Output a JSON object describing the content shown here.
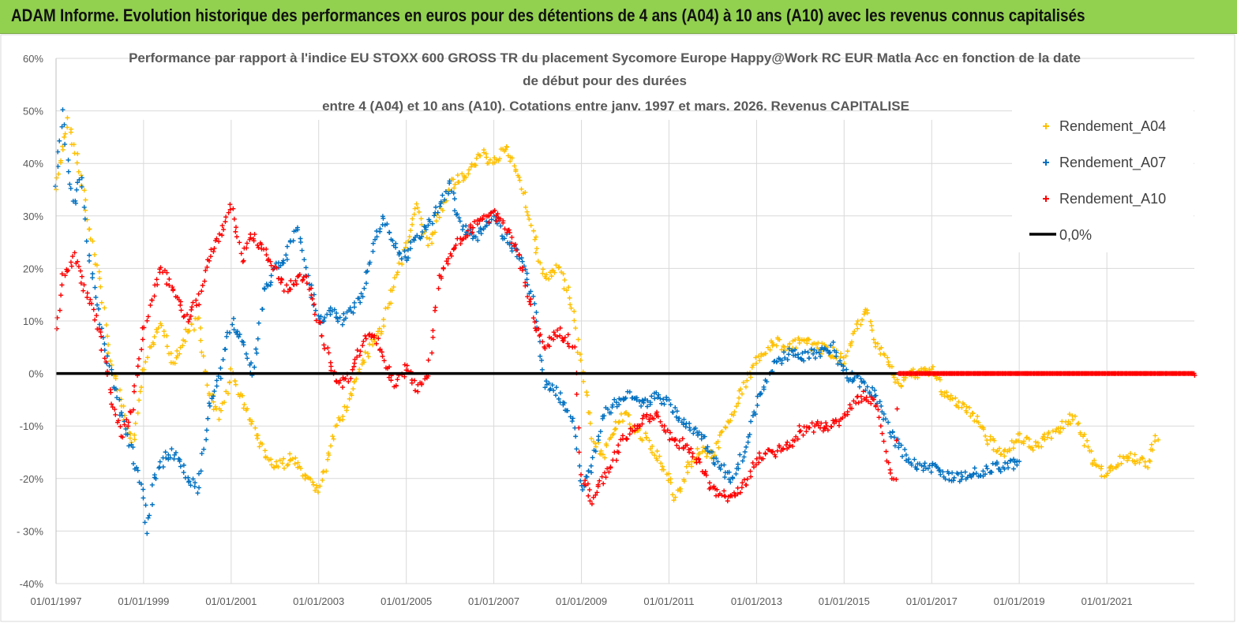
{
  "header": {
    "title": "ADAM Informe. Evolution historique des performances en euros pour des détentions de 4 ans (A04) à 10 ans (A10) avec les revenus connus capitalisés"
  },
  "colors": {
    "header_bg": "#92d050",
    "A04": "#ffc000",
    "A07": "#0070c0",
    "A10": "#ff0000",
    "zero_line": "#000000",
    "grid": "#d9d9d9"
  },
  "chart_data": {
    "type": "scatter",
    "title_lines": [
      "Performance par rapport à l'indice EU STOXX 600 GROSS TR  du placement Sycomore Europe Happy@Work RC EUR Matla Acc en fonction de la date",
      "de début pour des durées",
      "entre 4 (A04) et 10 ans (A10). Cotations entre janv. 1997 et mars. 2026. Revenus CAPITALISE"
    ],
    "x_type": "date",
    "xlim": [
      "1997-01-01",
      "2023-01-01"
    ],
    "ylim": [
      -0.4,
      0.6
    ],
    "y_format": "percent",
    "y_ticks": [
      "60%",
      "50%",
      "40%",
      "30%",
      "20%",
      "10%",
      "0%",
      "-10%",
      "-20%",
      "- 30%",
      "-40%"
    ],
    "x_ticks": [
      "01/01/1997",
      "01/01/1999",
      "01/01/2001",
      "01/01/2003",
      "01/01/2005",
      "01/01/2007",
      "01/01/2009",
      "01/01/2011",
      "01/01/2013",
      "01/01/2015",
      "01/01/2017",
      "01/01/2019",
      "01/01/2021"
    ],
    "grid": true,
    "legend_position": "right",
    "series": [
      {
        "name": "Rendement_A04",
        "marker": "plus",
        "points": [
          [
            "1997-01-01",
            0.35
          ],
          [
            "1997-03-15",
            0.45
          ],
          [
            "1997-04-15",
            0.48
          ],
          [
            "1997-07-01",
            0.4
          ],
          [
            "1997-10-01",
            0.28
          ],
          [
            "1998-01-01",
            0.18
          ],
          [
            "1998-04-01",
            0.02
          ],
          [
            "1998-07-01",
            -0.06
          ],
          [
            "1998-10-01",
            -0.14
          ],
          [
            "1998-11-15",
            -0.08
          ],
          [
            "1999-01-01",
            0.0
          ],
          [
            "1999-03-01",
            0.05
          ],
          [
            "1999-06-01",
            0.09
          ],
          [
            "1999-09-01",
            0.02
          ],
          [
            "2000-01-01",
            0.08
          ],
          [
            "2000-04-01",
            0.1
          ],
          [
            "2000-07-01",
            -0.04
          ],
          [
            "2000-10-01",
            -0.08
          ],
          [
            "2001-01-01",
            0.0
          ],
          [
            "2001-04-01",
            -0.05
          ],
          [
            "2001-07-01",
            -0.1
          ],
          [
            "2001-10-01",
            -0.15
          ],
          [
            "2002-01-01",
            -0.18
          ],
          [
            "2002-06-01",
            -0.16
          ],
          [
            "2002-09-01",
            -0.2
          ],
          [
            "2003-01-01",
            -0.22
          ],
          [
            "2003-03-01",
            -0.18
          ],
          [
            "2003-06-01",
            -0.1
          ],
          [
            "2003-10-01",
            -0.04
          ],
          [
            "2004-01-01",
            0.02
          ],
          [
            "2004-06-01",
            0.08
          ],
          [
            "2004-10-01",
            0.18
          ],
          [
            "2005-01-01",
            0.25
          ],
          [
            "2005-04-01",
            0.32
          ],
          [
            "2005-07-01",
            0.24
          ],
          [
            "2005-10-01",
            0.3
          ],
          [
            "2006-01-01",
            0.36
          ],
          [
            "2006-06-01",
            0.38
          ],
          [
            "2006-10-01",
            0.42
          ],
          [
            "2007-01-01",
            0.4
          ],
          [
            "2007-04-01",
            0.43
          ],
          [
            "2007-08-01",
            0.38
          ],
          [
            "2007-12-01",
            0.26
          ],
          [
            "2008-03-01",
            0.18
          ],
          [
            "2008-07-01",
            0.2
          ],
          [
            "2008-10-01",
            0.14
          ],
          [
            "2009-01-01",
            0.02
          ],
          [
            "2009-04-01",
            -0.12
          ],
          [
            "2009-07-01",
            -0.16
          ],
          [
            "2009-10-01",
            -0.1
          ],
          [
            "2010-01-01",
            -0.08
          ],
          [
            "2010-06-01",
            -0.12
          ],
          [
            "2010-10-01",
            -0.16
          ],
          [
            "2011-01-01",
            -0.2
          ],
          [
            "2011-03-01",
            -0.24
          ],
          [
            "2011-06-01",
            -0.18
          ],
          [
            "2011-10-01",
            -0.14
          ],
          [
            "2012-01-01",
            -0.16
          ],
          [
            "2012-06-01",
            -0.08
          ],
          [
            "2012-10-01",
            -0.02
          ],
          [
            "2013-01-01",
            0.03
          ],
          [
            "2013-06-01",
            0.06
          ],
          [
            "2013-10-01",
            0.05
          ],
          [
            "2014-01-01",
            0.06
          ],
          [
            "2014-06-01",
            0.05
          ],
          [
            "2014-10-01",
            0.04
          ],
          [
            "2015-01-01",
            0.02
          ],
          [
            "2015-04-01",
            0.08
          ],
          [
            "2015-07-01",
            0.12
          ],
          [
            "2015-10-01",
            0.06
          ],
          [
            "2016-01-01",
            0.02
          ],
          [
            "2016-04-01",
            -0.02
          ],
          [
            "2016-08-01",
            0.0
          ],
          [
            "2017-01-01",
            0.01
          ],
          [
            "2017-04-01",
            -0.03
          ],
          [
            "2017-08-01",
            -0.06
          ],
          [
            "2018-01-01",
            -0.08
          ],
          [
            "2018-05-01",
            -0.13
          ],
          [
            "2018-09-01",
            -0.15
          ],
          [
            "2019-01-01",
            -0.12
          ],
          [
            "2019-05-01",
            -0.14
          ],
          [
            "2019-09-01",
            -0.12
          ],
          [
            "2020-01-01",
            -0.1
          ],
          [
            "2020-04-01",
            -0.08
          ],
          [
            "2020-07-01",
            -0.13
          ],
          [
            "2020-10-01",
            -0.18
          ],
          [
            "2021-01-01",
            -0.19
          ],
          [
            "2021-04-01",
            -0.17
          ],
          [
            "2021-08-01",
            -0.16
          ],
          [
            "2021-12-01",
            -0.17
          ],
          [
            "2022-03-01",
            -0.12
          ]
        ]
      },
      {
        "name": "Rendement_A07",
        "marker": "plus",
        "points": [
          [
            "1997-01-01",
            0.36
          ],
          [
            "1997-03-01",
            0.5
          ],
          [
            "1997-04-15",
            0.38
          ],
          [
            "1997-06-01",
            0.32
          ],
          [
            "1997-08-01",
            0.38
          ],
          [
            "1997-10-01",
            0.22
          ],
          [
            "1998-01-01",
            0.1
          ],
          [
            "1998-04-01",
            0.0
          ],
          [
            "1998-07-01",
            -0.08
          ],
          [
            "1998-10-01",
            -0.15
          ],
          [
            "1999-01-01",
            -0.24
          ],
          [
            "1999-02-01",
            -0.3
          ],
          [
            "1999-04-01",
            -0.2
          ],
          [
            "1999-07-01",
            -0.16
          ],
          [
            "1999-10-01",
            -0.15
          ],
          [
            "2000-01-01",
            -0.2
          ],
          [
            "2000-04-01",
            -0.22
          ],
          [
            "2000-07-01",
            -0.06
          ],
          [
            "2000-10-01",
            0.0
          ],
          [
            "2001-01-01",
            0.1
          ],
          [
            "2001-04-01",
            0.06
          ],
          [
            "2001-07-01",
            0.0
          ],
          [
            "2001-10-01",
            0.15
          ],
          [
            "2002-01-01",
            0.2
          ],
          [
            "2002-04-01",
            0.22
          ],
          [
            "2002-07-01",
            0.28
          ],
          [
            "2002-10-01",
            0.18
          ],
          [
            "2003-01-01",
            0.1
          ],
          [
            "2003-04-01",
            0.12
          ],
          [
            "2003-07-01",
            0.1
          ],
          [
            "2003-10-01",
            0.12
          ],
          [
            "2004-01-01",
            0.15
          ],
          [
            "2004-04-01",
            0.24
          ],
          [
            "2004-07-01",
            0.3
          ],
          [
            "2004-10-01",
            0.24
          ],
          [
            "2005-01-01",
            0.22
          ],
          [
            "2005-04-01",
            0.26
          ],
          [
            "2005-07-01",
            0.28
          ],
          [
            "2005-10-01",
            0.32
          ],
          [
            "2006-01-01",
            0.36
          ],
          [
            "2006-04-01",
            0.28
          ],
          [
            "2006-08-01",
            0.26
          ],
          [
            "2007-01-01",
            0.3
          ],
          [
            "2007-04-01",
            0.26
          ],
          [
            "2007-08-01",
            0.22
          ],
          [
            "2007-12-01",
            0.14
          ],
          [
            "2008-03-01",
            -0.02
          ],
          [
            "2008-07-01",
            -0.04
          ],
          [
            "2008-11-01",
            -0.1
          ],
          [
            "2009-01-01",
            -0.22
          ],
          [
            "2009-04-01",
            -0.18
          ],
          [
            "2009-07-01",
            -0.08
          ],
          [
            "2009-10-01",
            -0.06
          ],
          [
            "2010-01-01",
            -0.04
          ],
          [
            "2010-06-01",
            -0.06
          ],
          [
            "2010-10-01",
            -0.04
          ],
          [
            "2011-01-01",
            -0.06
          ],
          [
            "2011-06-01",
            -0.1
          ],
          [
            "2011-10-01",
            -0.12
          ],
          [
            "2012-01-01",
            -0.16
          ],
          [
            "2012-06-01",
            -0.2
          ],
          [
            "2012-10-01",
            -0.14
          ],
          [
            "2013-01-01",
            -0.06
          ],
          [
            "2013-06-01",
            0.02
          ],
          [
            "2013-10-01",
            0.04
          ],
          [
            "2014-01-01",
            0.03
          ],
          [
            "2014-06-01",
            0.04
          ],
          [
            "2014-10-01",
            0.05
          ],
          [
            "2015-01-01",
            0.0
          ],
          [
            "2015-06-01",
            -0.02
          ],
          [
            "2015-10-01",
            -0.04
          ],
          [
            "2016-01-01",
            -0.1
          ],
          [
            "2016-04-01",
            -0.14
          ],
          [
            "2016-08-01",
            -0.17
          ],
          [
            "2017-01-01",
            -0.18
          ],
          [
            "2017-06-01",
            -0.2
          ],
          [
            "2018-01-01",
            -0.19
          ],
          [
            "2018-06-01",
            -0.18
          ],
          [
            "2019-01-01",
            -0.17
          ]
        ]
      },
      {
        "name": "Rendement_A10",
        "marker": "plus",
        "points": [
          [
            "1997-01-01",
            0.08
          ],
          [
            "1997-03-01",
            0.18
          ],
          [
            "1997-06-01",
            0.22
          ],
          [
            "1997-09-01",
            0.16
          ],
          [
            "1998-01-01",
            0.08
          ],
          [
            "1998-04-01",
            -0.04
          ],
          [
            "1998-07-01",
            -0.12
          ],
          [
            "1998-10-01",
            -0.06
          ],
          [
            "1999-01-01",
            0.08
          ],
          [
            "1999-03-01",
            0.14
          ],
          [
            "1999-06-01",
            0.2
          ],
          [
            "1999-09-01",
            0.16
          ],
          [
            "2000-01-01",
            0.1
          ],
          [
            "2000-04-01",
            0.14
          ],
          [
            "2000-07-01",
            0.22
          ],
          [
            "2000-10-01",
            0.26
          ],
          [
            "2001-01-01",
            0.32
          ],
          [
            "2001-04-01",
            0.22
          ],
          [
            "2001-07-01",
            0.26
          ],
          [
            "2001-10-01",
            0.24
          ],
          [
            "2002-01-01",
            0.2
          ],
          [
            "2002-04-01",
            0.16
          ],
          [
            "2002-07-01",
            0.18
          ],
          [
            "2002-10-01",
            0.18
          ],
          [
            "2003-01-01",
            0.1
          ],
          [
            "2003-04-01",
            0.02
          ],
          [
            "2003-07-01",
            -0.02
          ],
          [
            "2003-10-01",
            0.0
          ],
          [
            "2004-01-01",
            0.06
          ],
          [
            "2004-04-01",
            0.08
          ],
          [
            "2004-07-01",
            0.02
          ],
          [
            "2004-10-01",
            -0.02
          ],
          [
            "2005-01-01",
            0.01
          ],
          [
            "2005-04-01",
            -0.03
          ],
          [
            "2005-07-01",
            0.0
          ],
          [
            "2005-10-01",
            0.18
          ],
          [
            "2006-01-01",
            0.22
          ],
          [
            "2006-04-01",
            0.26
          ],
          [
            "2006-08-01",
            0.28
          ],
          [
            "2007-01-01",
            0.3
          ],
          [
            "2007-04-01",
            0.28
          ],
          [
            "2007-08-01",
            0.22
          ],
          [
            "2007-12-01",
            0.1
          ],
          [
            "2008-03-01",
            0.05
          ],
          [
            "2008-07-01",
            0.08
          ],
          [
            "2008-11-01",
            0.05
          ],
          [
            "2009-01-01",
            -0.2
          ],
          [
            "2009-04-01",
            -0.24
          ],
          [
            "2009-07-01",
            -0.2
          ],
          [
            "2009-10-01",
            -0.16
          ],
          [
            "2010-01-01",
            -0.12
          ],
          [
            "2010-06-01",
            -0.09
          ],
          [
            "2010-10-01",
            -0.08
          ],
          [
            "2011-01-01",
            -0.12
          ],
          [
            "2011-06-01",
            -0.14
          ],
          [
            "2011-10-01",
            -0.18
          ],
          [
            "2012-01-01",
            -0.22
          ],
          [
            "2012-06-01",
            -0.24
          ],
          [
            "2012-10-01",
            -0.21
          ],
          [
            "2013-01-01",
            -0.16
          ],
          [
            "2013-06-01",
            -0.15
          ],
          [
            "2013-10-01",
            -0.14
          ],
          [
            "2014-01-01",
            -0.11
          ],
          [
            "2014-06-01",
            -0.1
          ],
          [
            "2014-10-01",
            -0.1
          ],
          [
            "2015-01-01",
            -0.08
          ],
          [
            "2015-06-01",
            -0.04
          ],
          [
            "2015-10-01",
            -0.06
          ],
          [
            "2016-01-01",
            -0.18
          ],
          [
            "2016-03-01",
            -0.2
          ],
          [
            "2016-04-01",
            0.0
          ],
          [
            "2023-01-01",
            0.0
          ]
        ]
      }
    ],
    "reference_lines": [
      {
        "name": "0,0%",
        "y": 0.0
      }
    ],
    "legend": [
      "Rendement_A04",
      "Rendement_A07",
      "Rendement_A10",
      "0,0%"
    ]
  }
}
